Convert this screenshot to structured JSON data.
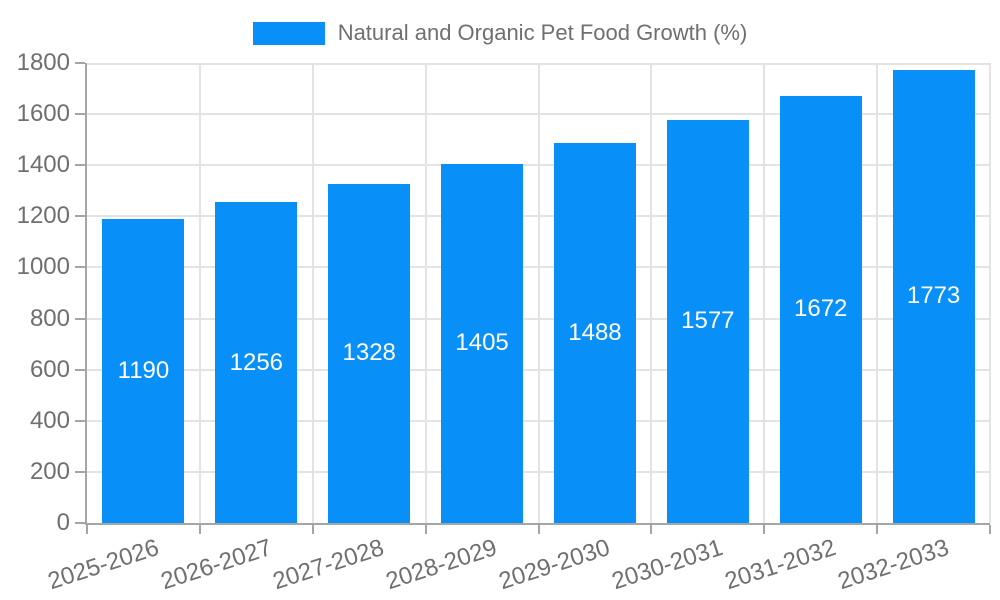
{
  "chart_data": {
    "type": "bar",
    "title": "Natural and Organic Pet Food Growth (%)",
    "categories": [
      "2025-2026",
      "2026-2027",
      "2027-2028",
      "2028-2029",
      "2029-2030",
      "2030-2031",
      "2031-2032",
      "2032-2033"
    ],
    "values": [
      1190,
      1256,
      1328,
      1405,
      1488,
      1577,
      1672,
      1773
    ],
    "xlabel": "",
    "ylabel": "",
    "ylim": [
      0,
      1800
    ],
    "ytick_step": 200,
    "yticks": [
      0,
      200,
      400,
      600,
      800,
      1000,
      1200,
      1400,
      1600,
      1800
    ],
    "grid": true,
    "value_labels_inside_bars": true,
    "x_label_rotation_deg": -18,
    "legend": {
      "label": "Natural and Organic Pet Food Growth (%)",
      "position": "top-center"
    },
    "colors": {
      "bar": "#0890F8",
      "value_label": "#FFFFFF",
      "axis_text": "#6F6F6F",
      "gridline": "#E3E3E3",
      "axis_line": "#A5A5A5",
      "background": "#FFFFFF"
    }
  }
}
